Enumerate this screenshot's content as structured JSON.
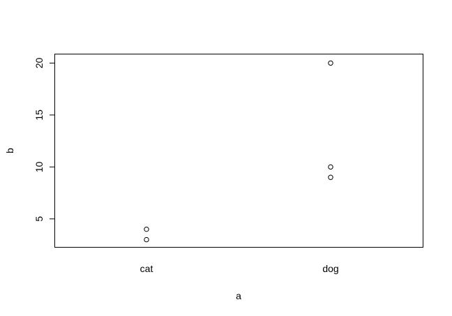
{
  "chart_data": {
    "type": "scatter",
    "title": "",
    "xlabel": "a",
    "ylabel": "b",
    "categories": [
      "cat",
      "dog"
    ],
    "points": [
      {
        "x": "cat",
        "y": 4
      },
      {
        "x": "cat",
        "y": 3
      },
      {
        "x": "dog",
        "y": 20
      },
      {
        "x": "dog",
        "y": 10
      },
      {
        "x": "dog",
        "y": 9
      }
    ],
    "yticks": [
      5,
      10,
      15,
      20
    ],
    "ylim": [
      2.3,
      20.9
    ],
    "grid": false,
    "legend": "none",
    "marker": "open-circle",
    "colors": {
      "marker": "#000000",
      "axis": "#000000",
      "background": "#ffffff"
    }
  }
}
